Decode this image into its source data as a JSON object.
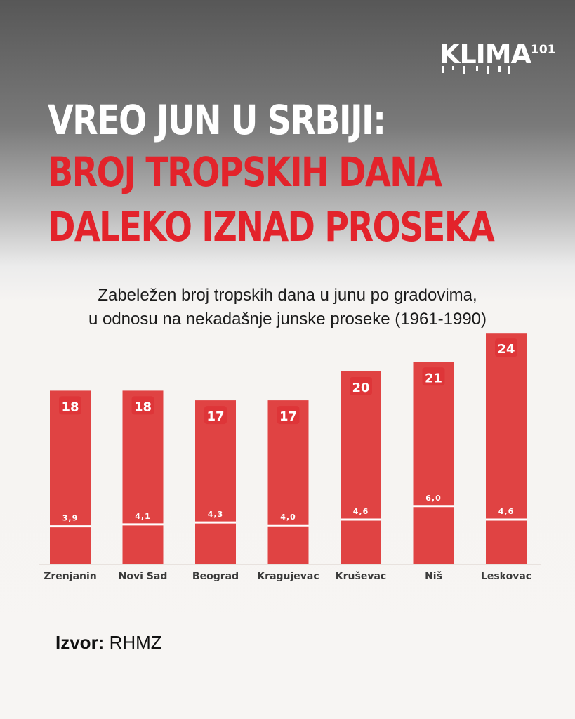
{
  "brand": {
    "logo_text": "KLIMA",
    "logo_sup": "101"
  },
  "title_lines": [
    "VREO JUN U SRBIJI:",
    "BROJ TROPSKIH DANA",
    "DALEKO IZNAD PROSEKA"
  ],
  "subtitle_lines": [
    "Zabeležen broj tropskih dana u junu po gradovima,",
    "u odnosu na nekadašnje junske proseke (1961-1990)"
  ],
  "source": {
    "label": "Izvor:",
    "value": "RHMZ"
  },
  "colors": {
    "bar": "#e04343",
    "title_red": "#e3232b",
    "line": "#ffffff",
    "label_badge": "#d91e26"
  },
  "chart_data": {
    "type": "bar",
    "categories": [
      "Zrenjanin",
      "Novi Sad",
      "Beograd",
      "Kragujevac",
      "Kruševac",
      "Niš",
      "Leskovac"
    ],
    "series": [
      {
        "values": [
          18,
          18,
          17,
          17,
          20,
          21,
          24
        ]
      },
      {
        "values": [
          3.9,
          4.1,
          4.3,
          4.0,
          4.6,
          6.0,
          4.6
        ],
        "display": [
          "3,9",
          "4,1",
          "4,3",
          "4,0",
          "4,6",
          "6,0",
          "4,6"
        ]
      }
    ],
    "ylim": [
      0,
      25
    ],
    "grid": false
  }
}
